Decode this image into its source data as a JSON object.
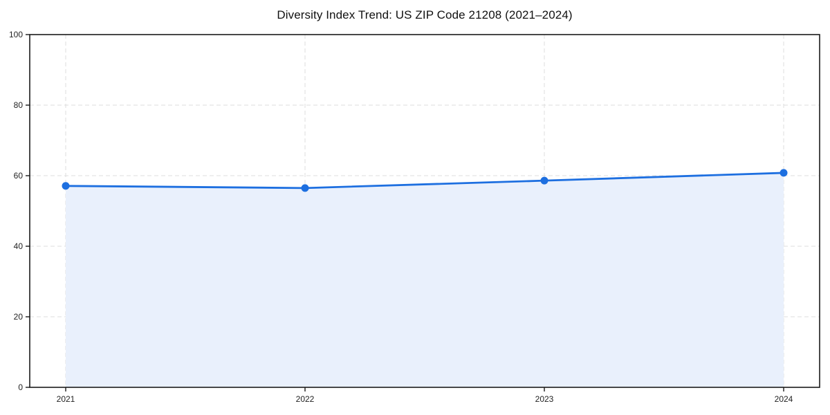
{
  "chart_data": {
    "type": "area",
    "title": "Diversity Index Trend: US ZIP Code 21208 (2021–2024)",
    "x": [
      "2021",
      "2022",
      "2023",
      "2024"
    ],
    "series": [
      {
        "name": "Diversity Index",
        "values": [
          57.1,
          56.5,
          58.6,
          60.8
        ]
      }
    ],
    "xlabel": "",
    "ylabel": "",
    "ylim": [
      0,
      100
    ],
    "yticks": [
      0,
      20,
      40,
      60,
      80,
      100
    ],
    "grid": "dashed, horizontal and vertical at ticks",
    "legend": "none",
    "marker": "filled circle",
    "colors": {
      "line": "#1d6fe0",
      "marker": "#1d6fe0",
      "area_fill": "#e9f0fc",
      "gridline": "#dedede",
      "axis": "#1a1a1a",
      "tick_label": "#222222",
      "title": "#111111",
      "background": "#ffffff"
    }
  }
}
